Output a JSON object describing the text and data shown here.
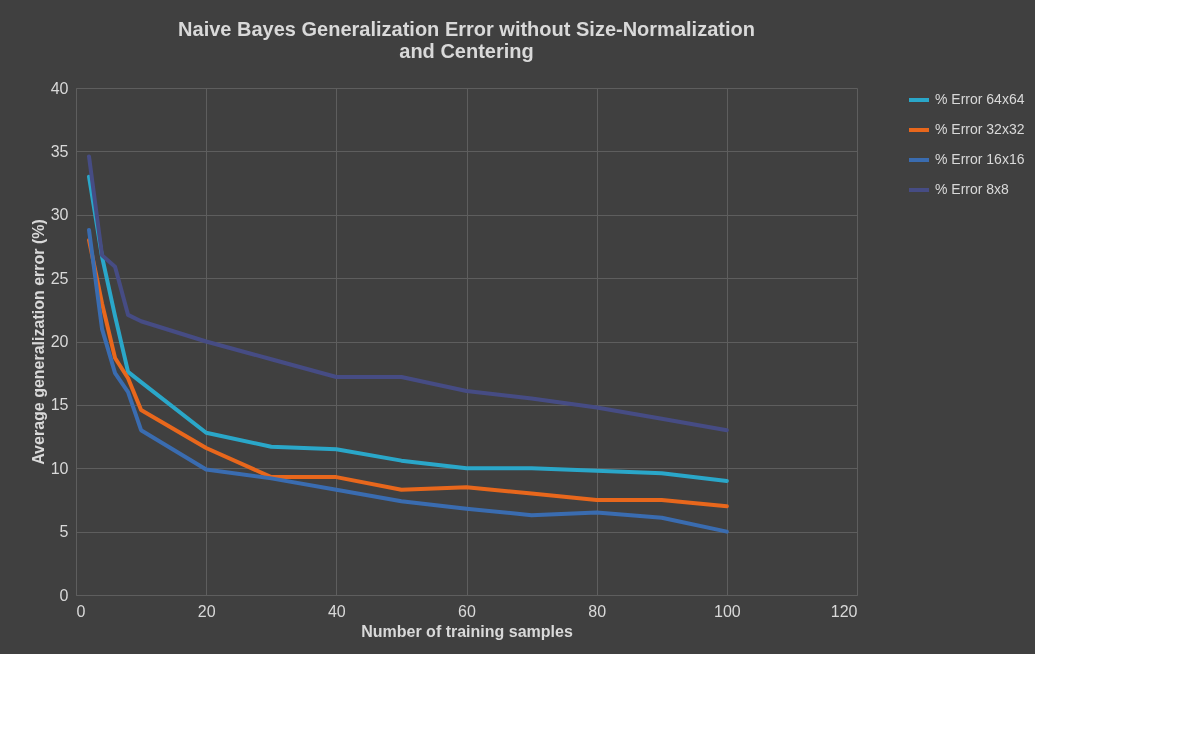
{
  "chart_data": {
    "type": "line",
    "title": "Naive Bayes Generalization Error without Size-Normalization and Centering",
    "xlabel": "Number of training samples",
    "ylabel": "Average generalization error (%)",
    "x": [
      2,
      4,
      6,
      8,
      10,
      20,
      30,
      40,
      50,
      60,
      70,
      80,
      90,
      100
    ],
    "series": [
      {
        "name": "% Error 64x64",
        "color": "#2aa7c9",
        "values": [
          33.0,
          26.7,
          22.0,
          17.6,
          16.8,
          12.8,
          11.7,
          11.5,
          10.6,
          10.0,
          10.0,
          9.8,
          9.6,
          9.0
        ]
      },
      {
        "name": "% Error 32x32",
        "color": "#e8671c",
        "values": [
          28.0,
          23.0,
          18.7,
          17.1,
          14.6,
          11.6,
          9.3,
          9.3,
          8.3,
          8.5,
          8.0,
          7.5,
          7.5,
          7.0
        ]
      },
      {
        "name": "% Error 16x16",
        "color": "#3a6cb0",
        "values": [
          28.8,
          21.0,
          17.5,
          16.0,
          13.0,
          9.9,
          9.2,
          8.3,
          7.4,
          6.8,
          6.3,
          6.5,
          6.1,
          5.0
        ]
      },
      {
        "name": "% Error 8x8",
        "color": "#464c84",
        "values": [
          34.6,
          26.8,
          25.9,
          22.1,
          21.6,
          20.0,
          18.6,
          17.2,
          17.2,
          16.1,
          15.5,
          14.8,
          13.9,
          13.0
        ]
      }
    ],
    "xlim": [
      0,
      120
    ],
    "xticks": [
      0,
      20,
      40,
      60,
      80,
      100,
      120
    ],
    "ylim": [
      0,
      40
    ],
    "yticks": [
      0,
      5,
      10,
      15,
      20,
      25,
      30,
      35,
      40
    ],
    "grid": true,
    "legend": "right",
    "marker": "none",
    "line_style": "solid"
  }
}
